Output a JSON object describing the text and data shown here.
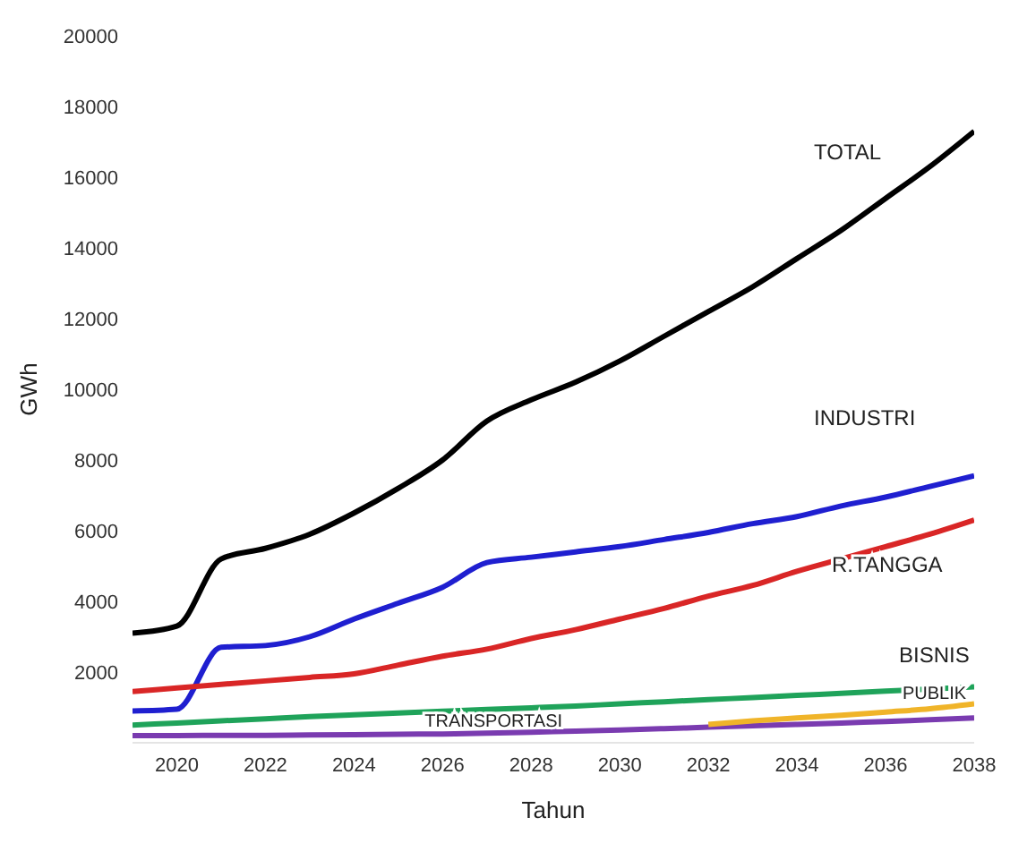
{
  "chart_data": {
    "type": "line",
    "xlabel": "Tahun",
    "ylabel": "GWh",
    "x": [
      2019,
      2020,
      2021,
      2022,
      2023,
      2024,
      2025,
      2026,
      2027,
      2028,
      2029,
      2030,
      2031,
      2032,
      2033,
      2034,
      2035,
      2036,
      2037,
      2038
    ],
    "xlim": [
      2019,
      2038
    ],
    "xticks": [
      2020,
      2022,
      2024,
      2026,
      2028,
      2030,
      2032,
      2034,
      2036,
      2038
    ],
    "ylim": [
      0,
      20000
    ],
    "yticks": [
      2000,
      4000,
      6000,
      8000,
      10000,
      12000,
      14000,
      16000,
      18000,
      20000
    ],
    "marker": "none",
    "line_style": "solid",
    "series": [
      {
        "name": "TOTAL",
        "color": "#000000",
        "values": [
          3100,
          3300,
          5200,
          5500,
          5900,
          6500,
          7200,
          8000,
          9100,
          9700,
          10200,
          10800,
          11500,
          12200,
          12900,
          13700,
          14500,
          15400,
          16300,
          17300
        ]
      },
      {
        "name": "INDUSTRI",
        "color": "#1f1fd0",
        "values": [
          900,
          950,
          2700,
          2750,
          3000,
          3500,
          3950,
          4400,
          5100,
          5250,
          5400,
          5550,
          5750,
          5950,
          6200,
          6400,
          6700,
          6950,
          7250,
          7550
        ]
      },
      {
        "name": "R.TANGGA",
        "color": "#d92626",
        "values": [
          1450,
          1550,
          1650,
          1750,
          1850,
          1950,
          2200,
          2450,
          2650,
          2950,
          3200,
          3500,
          3800,
          4150,
          4450,
          4850,
          5200,
          5550,
          5900,
          6300
        ]
      },
      {
        "name": "BISNIS",
        "color": "#1fa35a",
        "values": [
          500,
          560,
          620,
          680,
          740,
          790,
          840,
          890,
          940,
          990,
          1040,
          1100,
          1160,
          1220,
          1280,
          1340,
          1400,
          1460,
          1520,
          1580
        ]
      },
      {
        "name": "TRANSPORTASI",
        "color": "#7a3bb0",
        "values": [
          200,
          200,
          210,
          210,
          220,
          230,
          240,
          250,
          270,
          300,
          330,
          360,
          400,
          440,
          480,
          520,
          560,
          600,
          650,
          700
        ]
      },
      {
        "name": "PUBLIK",
        "color": "#f0b429",
        "values": [
          null,
          null,
          null,
          null,
          null,
          null,
          null,
          null,
          null,
          null,
          null,
          null,
          null,
          520,
          620,
          700,
          780,
          870,
          960,
          1100
        ]
      }
    ]
  }
}
